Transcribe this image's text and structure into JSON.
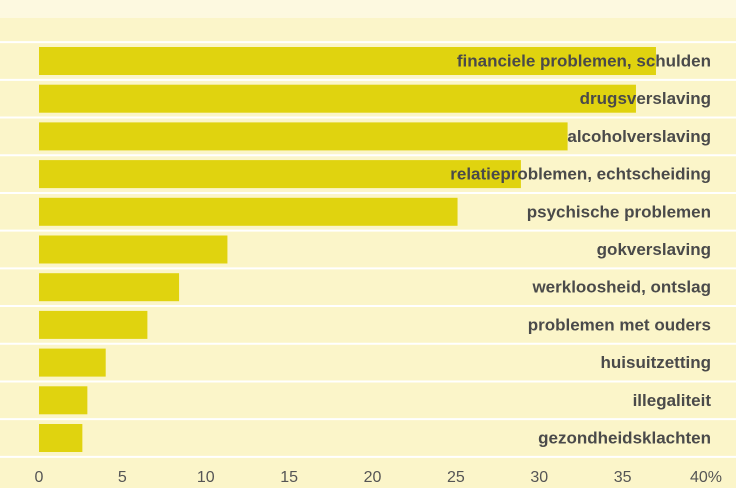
{
  "chart_data": {
    "type": "bar",
    "categories": [
      "financiele problemen, schulden",
      "drugsverslaving",
      "alcoholverslaving",
      "relatieproblemen, echtscheiding",
      "psychische problemen",
      "gokverslaving",
      "werkloosheid, ontslag",
      "problemen met ouders",
      "huisuitzetting",
      "illegaliteit",
      "gezondheidsklachten"
    ],
    "values": [
      37.0,
      35.8,
      31.7,
      28.9,
      25.1,
      11.3,
      8.4,
      6.5,
      4.0,
      2.9,
      2.6
    ],
    "color": "#e0d30f",
    "xlim": [
      0,
      40
    ],
    "xticks": [
      0,
      5,
      10,
      15,
      20,
      25,
      30,
      35,
      {
        "value": 40,
        "label": "40%"
      }
    ]
  }
}
